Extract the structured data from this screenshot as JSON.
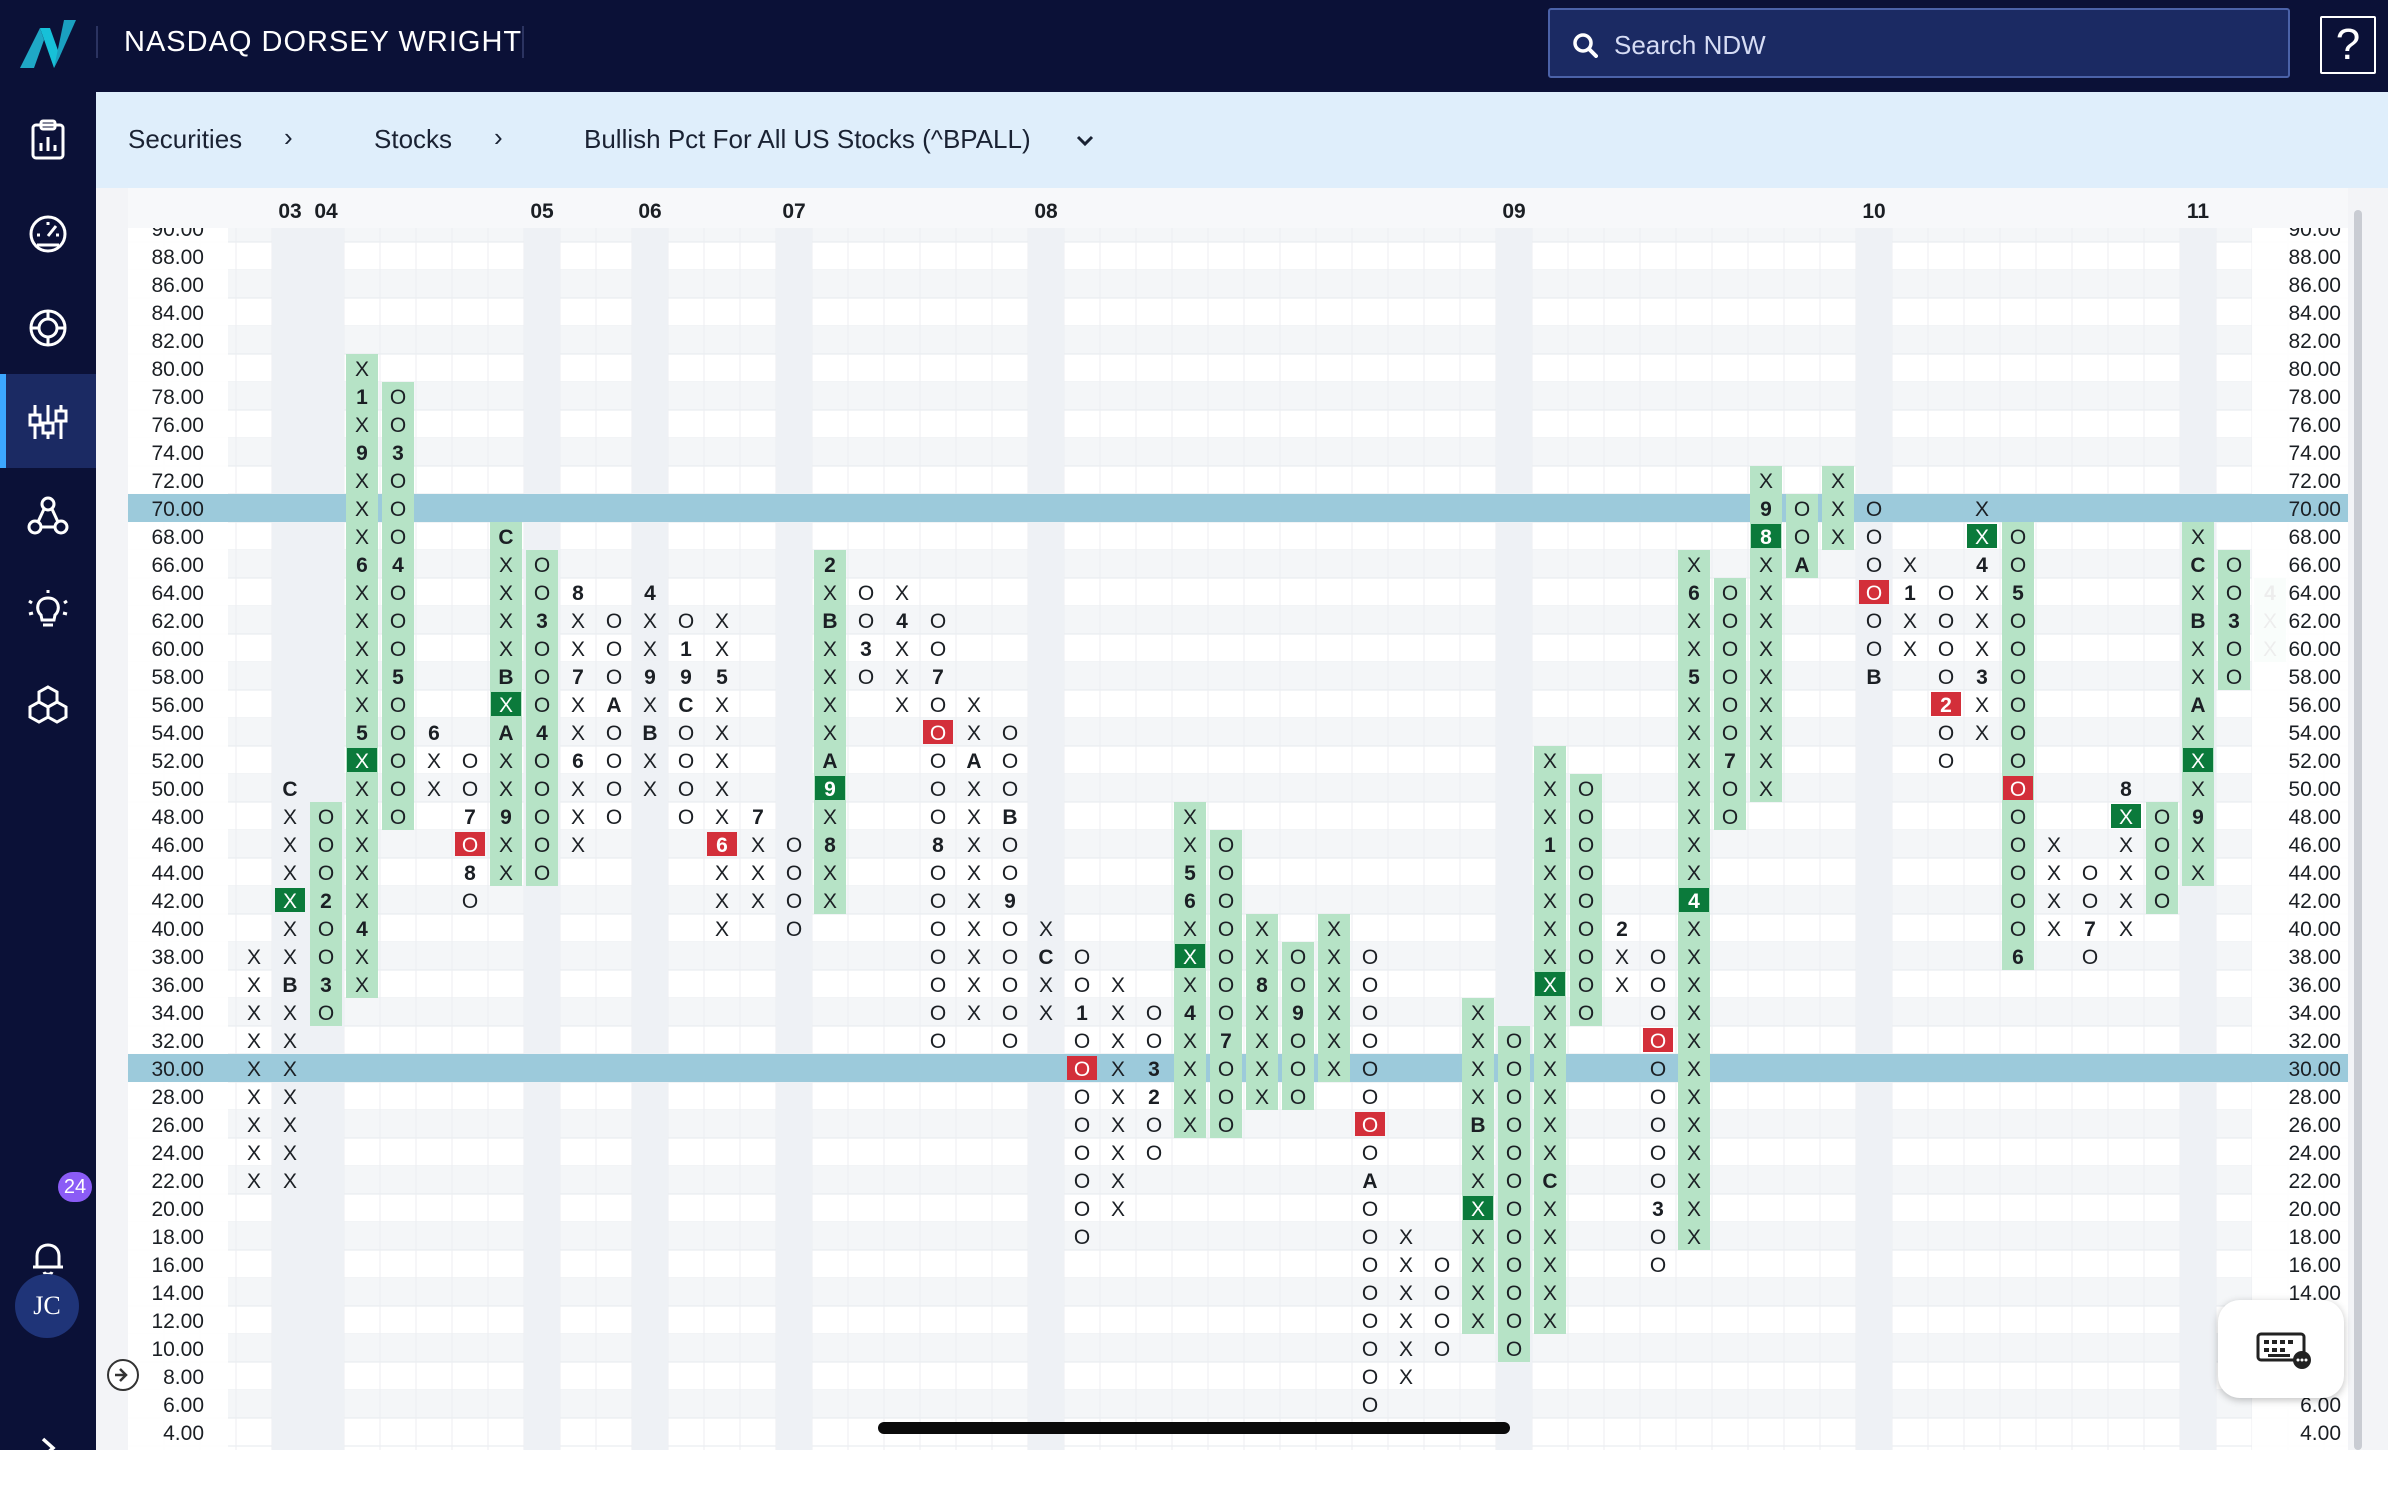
{
  "header": {
    "brand": "NASDAQ DORSEY WRIGHT",
    "search_placeholder": "Search NDW",
    "help_label": "?"
  },
  "sidebar": {
    "items": [
      {
        "name": "clipboard-chart-icon"
      },
      {
        "name": "dashboard-gauge-icon"
      },
      {
        "name": "target-icon"
      },
      {
        "name": "sliders-icon",
        "active": true
      },
      {
        "name": "network-icon"
      },
      {
        "name": "lightbulb-icon"
      },
      {
        "name": "cubes-icon"
      }
    ],
    "notifications_count": "24",
    "avatar_initials": "JC"
  },
  "breadcrumb": {
    "items": [
      "Securities",
      "Stocks",
      "Bullish Pct For All US Stocks (^BPALL)"
    ]
  },
  "colors": {
    "column_fill": "#b6e3c6",
    "box_green": "#0b7a3b",
    "box_red": "#d32f3a",
    "highlight_band": "#9ccadb"
  },
  "chart_data": {
    "type": "point-and-figure",
    "symbol": "^BPALL",
    "box_size": 2,
    "y_range": [
      4,
      90
    ],
    "y_ticks": [
      "90.00",
      "88.00",
      "86.00",
      "84.00",
      "82.00",
      "80.00",
      "78.00",
      "76.00",
      "74.00",
      "72.00",
      "70.00",
      "68.00",
      "66.00",
      "64.00",
      "62.00",
      "60.00",
      "58.00",
      "56.00",
      "54.00",
      "52.00",
      "50.00",
      "48.00",
      "46.00",
      "44.00",
      "42.00",
      "40.00",
      "38.00",
      "36.00",
      "34.00",
      "32.00",
      "30.00",
      "28.00",
      "26.00",
      "24.00",
      "22.00",
      "20.00",
      "18.00",
      "16.00",
      "14.00",
      "12.00",
      "10.00",
      "8.00",
      "6.00",
      "4.00"
    ],
    "highlight_levels": [
      70,
      30
    ],
    "year_labels": [
      {
        "label": "03",
        "col": 1
      },
      {
        "label": "04",
        "col": 2
      },
      {
        "label": "05",
        "col": 8
      },
      {
        "label": "06",
        "col": 11
      },
      {
        "label": "07",
        "col": 15
      },
      {
        "label": "08",
        "col": 22
      },
      {
        "label": "09",
        "col": 35
      },
      {
        "label": "10",
        "col": 45
      },
      {
        "label": "11",
        "col": 54
      }
    ],
    "columns": [
      {
        "c": 0,
        "t": "X",
        "lo": 22,
        "hi": 38,
        "f": false
      },
      {
        "c": 1,
        "t": "X",
        "lo": 22,
        "hi": 50,
        "f": false,
        "m": {
          "50": "C",
          "36": "B"
        },
        "mf": {
          "42": "g"
        }
      },
      {
        "c": 2,
        "t": "O",
        "lo": 34,
        "hi": 48,
        "f": true,
        "m": {
          "42": "2",
          "36": "3"
        }
      },
      {
        "c": 3,
        "t": "X",
        "lo": 36,
        "hi": 80,
        "f": true,
        "m": {
          "78": "1",
          "74": "9",
          "66": "6",
          "54": "5",
          "40": "4"
        },
        "mf": {
          "52": "g"
        }
      },
      {
        "c": 4,
        "t": "O",
        "lo": 48,
        "hi": 78,
        "f": true,
        "m": {
          "74": "3",
          "66": "4",
          "58": "5"
        }
      },
      {
        "c": 5,
        "t": "X",
        "lo": 50,
        "hi": 54,
        "f": false,
        "m": {
          "54": "6"
        }
      },
      {
        "c": 6,
        "t": "O",
        "lo": 42,
        "hi": 52,
        "f": false,
        "m": {
          "48": "7",
          "44": "8"
        },
        "mf": {
          "46": "r"
        }
      },
      {
        "c": 7,
        "t": "X",
        "lo": 44,
        "hi": 68,
        "f": true,
        "m": {
          "68": "C",
          "58": "B",
          "54": "A",
          "48": "9"
        },
        "mf": {
          "56": "g"
        }
      },
      {
        "c": 8,
        "t": "O",
        "lo": 44,
        "hi": 66,
        "f": true,
        "m": {
          "62": "3",
          "54": "4"
        }
      },
      {
        "c": 9,
        "t": "X",
        "lo": 46,
        "hi": 64,
        "f": false,
        "m": {
          "64": "8",
          "58": "7",
          "52": "6"
        }
      },
      {
        "c": 10,
        "t": "O",
        "lo": 48,
        "hi": 62,
        "f": false,
        "m": {
          "56": "A"
        }
      },
      {
        "c": 11,
        "t": "X",
        "lo": 50,
        "hi": 64,
        "f": false,
        "m": {
          "64": "4",
          "58": "9",
          "54": "B"
        }
      },
      {
        "c": 12,
        "t": "O",
        "lo": 48,
        "hi": 62,
        "f": false,
        "m": {
          "60": "1",
          "58": "9",
          "56": "C"
        }
      },
      {
        "c": 13,
        "t": "X",
        "lo": 40,
        "hi": 62,
        "f": false,
        "m": {
          "58": "5",
          "46": "6"
        },
        "mf": {
          "46": "r"
        }
      },
      {
        "c": 14,
        "t": "X",
        "lo": 42,
        "hi": 48,
        "f": false,
        "m": {
          "48": "7"
        }
      },
      {
        "c": 15,
        "t": "O",
        "lo": 40,
        "hi": 46,
        "f": false
      },
      {
        "c": 16,
        "t": "X",
        "lo": 42,
        "hi": 66,
        "f": true,
        "m": {
          "66": "2",
          "62": "B",
          "52": "A",
          "50": "9",
          "46": "8"
        },
        "mf": {
          "50": "g"
        }
      },
      {
        "c": 17,
        "t": "O",
        "lo": 58,
        "hi": 64,
        "f": false,
        "m": {
          "60": "3"
        }
      },
      {
        "c": 18,
        "t": "X",
        "lo": 56,
        "hi": 64,
        "f": false,
        "m": {
          "62": "4"
        }
      },
      {
        "c": 19,
        "t": "O",
        "lo": 32,
        "hi": 62,
        "f": false,
        "m": {
          "58": "7",
          "46": "8"
        },
        "mf": {
          "54": "r"
        }
      },
      {
        "c": 20,
        "t": "X",
        "lo": 34,
        "hi": 56,
        "f": false,
        "m": {
          "52": "A"
        }
      },
      {
        "c": 21,
        "t": "O",
        "lo": 32,
        "hi": 54,
        "f": false,
        "m": {
          "48": "B",
          "42": "9"
        }
      },
      {
        "c": 22,
        "t": "X",
        "lo": 34,
        "hi": 40,
        "f": false,
        "m": {
          "38": "C"
        }
      },
      {
        "c": 23,
        "t": "O",
        "lo": 18,
        "hi": 38,
        "f": false,
        "m": {
          "34": "1"
        },
        "mf": {
          "30": "r"
        }
      },
      {
        "c": 24,
        "t": "X",
        "lo": 20,
        "hi": 36,
        "f": false
      },
      {
        "c": 25,
        "t": "O",
        "lo": 24,
        "hi": 34,
        "f": false,
        "m": {
          "30": "3",
          "28": "2"
        }
      },
      {
        "c": 26,
        "t": "X",
        "lo": 26,
        "hi": 48,
        "f": true,
        "m": {
          "44": "5",
          "42": "6",
          "34": "4"
        },
        "mf": {
          "38": "g"
        }
      },
      {
        "c": 27,
        "t": "O",
        "lo": 26,
        "hi": 46,
        "f": true,
        "m": {
          "32": "7"
        }
      },
      {
        "c": 28,
        "t": "X",
        "lo": 28,
        "hi": 40,
        "f": true,
        "m": {
          "36": "8"
        }
      },
      {
        "c": 29,
        "t": "O",
        "lo": 28,
        "hi": 38,
        "f": true,
        "m": {
          "34": "9"
        }
      },
      {
        "c": 30,
        "t": "X",
        "lo": 30,
        "hi": 40,
        "f": true
      },
      {
        "c": 31,
        "t": "O",
        "lo": 6,
        "hi": 38,
        "f": false,
        "m": {
          "22": "A"
        },
        "mf": {
          "26": "r"
        }
      },
      {
        "c": 32,
        "t": "X",
        "lo": 8,
        "hi": 18,
        "f": false
      },
      {
        "c": 33,
        "t": "O",
        "lo": 10,
        "hi": 16,
        "f": false
      },
      {
        "c": 34,
        "t": "X",
        "lo": 12,
        "hi": 34,
        "f": true,
        "m": {
          "26": "B"
        },
        "mf": {
          "20": "g"
        }
      },
      {
        "c": 35,
        "t": "O",
        "lo": 10,
        "hi": 32,
        "f": true
      },
      {
        "c": 36,
        "t": "X",
        "lo": 12,
        "hi": 52,
        "f": true,
        "m": {
          "46": "1",
          "22": "C"
        },
        "mf": {
          "36": "g"
        }
      },
      {
        "c": 37,
        "t": "O",
        "lo": 34,
        "hi": 50,
        "f": true
      },
      {
        "c": 38,
        "t": "X",
        "lo": 36,
        "hi": 40,
        "f": false,
        "m": {
          "40": "2"
        }
      },
      {
        "c": 39,
        "t": "O",
        "lo": 16,
        "hi": 38,
        "f": false,
        "m": {
          "20": "3"
        },
        "mf": {
          "32": "r"
        }
      },
      {
        "c": 40,
        "t": "X",
        "lo": 18,
        "hi": 66,
        "f": true,
        "m": {
          "64": "6",
          "58": "5",
          "42": "4"
        },
        "mf": {
          "42": "g"
        }
      },
      {
        "c": 41,
        "t": "O",
        "lo": 48,
        "hi": 64,
        "f": true,
        "m": {
          "52": "7"
        }
      },
      {
        "c": 42,
        "t": "X",
        "lo": 50,
        "hi": 72,
        "f": true,
        "m": {
          "70": "9",
          "68": "8"
        },
        "mf": {
          "68": "g"
        }
      },
      {
        "c": 43,
        "t": "O",
        "lo": 66,
        "hi": 70,
        "f": true,
        "m": {
          "66": "A"
        }
      },
      {
        "c": 44,
        "t": "X",
        "lo": 68,
        "hi": 72,
        "f": true
      },
      {
        "c": 45,
        "t": "O",
        "lo": 58,
        "hi": 70,
        "f": false,
        "m": {
          "58": "B"
        },
        "mf": {
          "64": "r"
        }
      },
      {
        "c": 46,
        "t": "X",
        "lo": 60,
        "hi": 66,
        "f": false,
        "m": {
          "64": "1"
        }
      },
      {
        "c": 47,
        "t": "O",
        "lo": 52,
        "hi": 64,
        "f": false,
        "m": {
          "56": "2"
        },
        "mf": {
          "56": "r"
        }
      },
      {
        "c": 48,
        "t": "X",
        "lo": 54,
        "hi": 70,
        "f": false,
        "m": {
          "66": "4",
          "58": "3"
        },
        "mf": {
          "68": "g"
        }
      },
      {
        "c": 49,
        "t": "O",
        "lo": 38,
        "hi": 68,
        "f": true,
        "m": {
          "64": "5",
          "38": "6"
        },
        "mf": {
          "50": "r"
        }
      },
      {
        "c": 50,
        "t": "X",
        "lo": 40,
        "hi": 46,
        "f": false
      },
      {
        "c": 51,
        "t": "O",
        "lo": 38,
        "hi": 44,
        "f": false,
        "m": {
          "40": "7"
        }
      },
      {
        "c": 52,
        "t": "X",
        "lo": 40,
        "hi": 50,
        "f": false,
        "m": {
          "50": "8"
        },
        "mf": {
          "48": "g"
        }
      },
      {
        "c": 53,
        "t": "O",
        "lo": 42,
        "hi": 48,
        "f": true
      },
      {
        "c": 54,
        "t": "X",
        "lo": 44,
        "hi": 68,
        "f": true,
        "m": {
          "66": "C",
          "62": "B",
          "56": "A",
          "48": "9"
        },
        "mf": {
          "52": "g"
        }
      },
      {
        "c": 55,
        "t": "O",
        "lo": 58,
        "hi": 66,
        "f": true,
        "m": {
          "62": "3"
        }
      },
      {
        "c": 56,
        "t": "X",
        "lo": 60,
        "hi": 64,
        "f": true,
        "m": {
          "64": "4"
        }
      }
    ]
  }
}
